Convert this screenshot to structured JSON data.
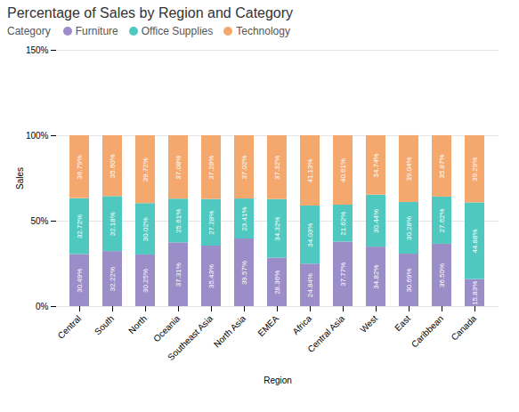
{
  "chart_data": {
    "type": "bar",
    "title": "Percentage of Sales by Region and Category",
    "xlabel": "Region",
    "ylabel": "Sales",
    "categories": [
      "Central",
      "South",
      "North",
      "Oceania",
      "Southeast Asia",
      "North Asia",
      "EMEA",
      "Africa",
      "Central Asia",
      "West",
      "East",
      "Caribbean",
      "Canada"
    ],
    "series": [
      {
        "name": "Furniture",
        "color": "#9b8dc8",
        "values": [
          30.49,
          32.22,
          30.25,
          37.31,
          35.43,
          39.57,
          28.36,
          24.84,
          37.77,
          34.82,
          30.69,
          36.5,
          15.83
        ],
        "value_labels": [
          "30.49%",
          "32.22%",
          "30.25%",
          "37.31%",
          "35.43%",
          "39.57%",
          "28.36%",
          "24.84%",
          "37.77%",
          "34.82%",
          "30.69%",
          "36.50%",
          "15.83%"
        ]
      },
      {
        "name": "Office Supplies",
        "color": "#4fc9bf",
        "values": [
          32.72,
          32.18,
          30.02,
          25.61,
          27.28,
          23.41,
          34.32,
          34.03,
          21.62,
          30.44,
          30.28,
          27.62,
          44.88
        ],
        "value_labels": [
          "32.72%",
          "32.18%",
          "30.02%",
          "25.61%",
          "27.28%",
          "23.41%",
          "34.32%",
          "34.03%",
          "21.62%",
          "30.44%",
          "30.28%",
          "27.62%",
          "44.88%"
        ]
      },
      {
        "name": "Technology",
        "color": "#f4a86e",
        "values": [
          36.79,
          35.6,
          39.72,
          37.08,
          37.28,
          37.02,
          37.32,
          41.13,
          40.61,
          34.74,
          39.04,
          35.87,
          39.29
        ],
        "value_labels": [
          "36.79%",
          "35.60%",
          "39.72%",
          "37.08%",
          "37.28%",
          "37.02%",
          "37.32%",
          "41.13%",
          "40.61%",
          "34.74%",
          "39.04%",
          "35.87%",
          "39.29%"
        ]
      }
    ],
    "stacked": true,
    "data_labels": true,
    "ylim": [
      0,
      150
    ],
    "yticks": [
      {
        "value": 0,
        "label": "0%"
      },
      {
        "value": 50,
        "label": "50%"
      },
      {
        "value": 100,
        "label": "100%"
      },
      {
        "value": 150,
        "label": "150%"
      }
    ],
    "grid": true,
    "legend": "upper left",
    "legend_title": "Category"
  }
}
